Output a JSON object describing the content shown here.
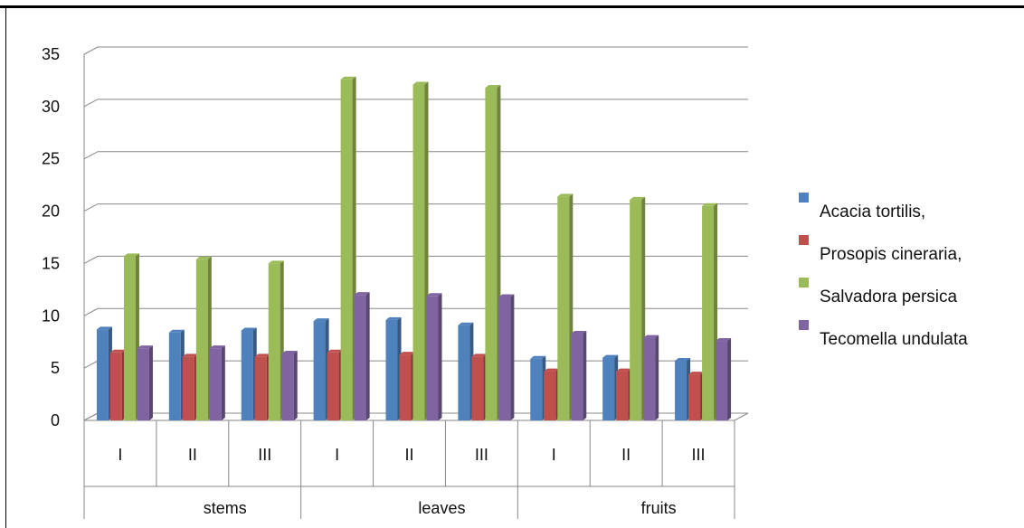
{
  "chart_data": {
    "type": "bar",
    "title": "",
    "xlabel": "",
    "ylabel": "",
    "ylim": [
      0,
      35
    ],
    "yticks": [
      0,
      5,
      10,
      15,
      20,
      25,
      30,
      35
    ],
    "groups": [
      "stems",
      "leaves",
      "fruits"
    ],
    "categories": [
      "I",
      "II",
      "III",
      "I",
      "II",
      "III",
      "I",
      "II",
      "III"
    ],
    "series": [
      {
        "name": "Acacia tortilis,",
        "color": "#4f81bd",
        "values": [
          8.7,
          8.4,
          8.6,
          9.5,
          9.6,
          9.1,
          5.9,
          6.0,
          5.7
        ]
      },
      {
        "name": "Prosopis cineraria,",
        "color": "#c0504d",
        "values": [
          6.5,
          6.1,
          6.1,
          6.5,
          6.3,
          6.1,
          4.7,
          4.7,
          4.4
        ]
      },
      {
        "name": "Salvadora persica",
        "color": "#9bbb59",
        "values": [
          15.7,
          15.4,
          15.0,
          32.6,
          32.1,
          31.8,
          21.4,
          21.1,
          20.5
        ]
      },
      {
        "name": "Tecomella undulata",
        "color": "#8064a2",
        "values": [
          6.9,
          6.9,
          6.4,
          12.0,
          11.9,
          11.8,
          8.3,
          7.9,
          7.6
        ]
      }
    ],
    "grid": true,
    "legend": "right"
  }
}
